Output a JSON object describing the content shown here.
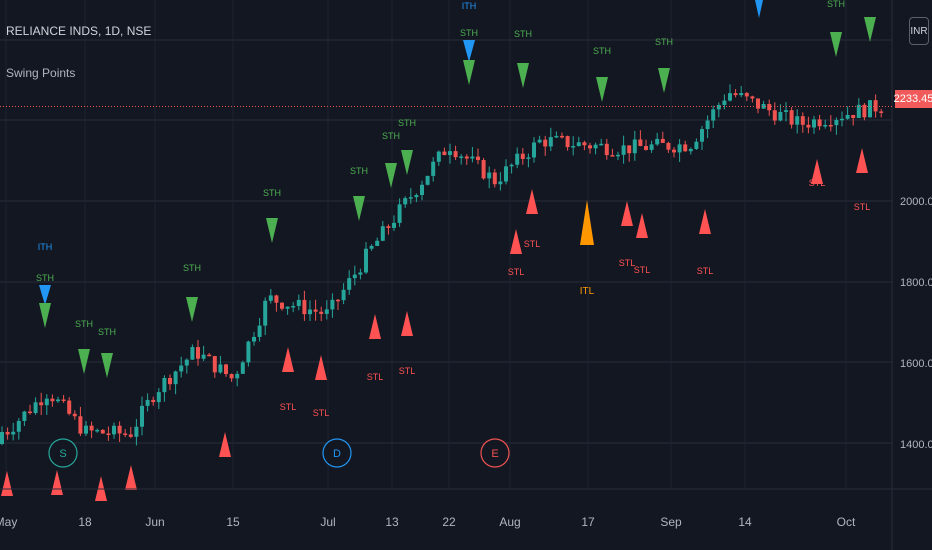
{
  "header": {
    "title": "RELIANCE INDS, 1D, NSE",
    "indicator": "Swing Points",
    "currency": "INR"
  },
  "last_price": "2233.45",
  "colors": {
    "background": "#131722",
    "up": "#26a69a",
    "down": "#ef5350",
    "swing_high": "#4caf50",
    "intermediate_high": "#2196f3",
    "swing_low": "#ff5252",
    "intermediate_low": "#ff9800"
  },
  "chart_data": {
    "type": "candlestick",
    "ylim": [
      1275,
      2345
    ],
    "y_ticks": [
      "2000.00",
      "1800.00",
      "1600.00",
      "1400.00"
    ],
    "x_ticks": [
      "May",
      "18",
      "Jun",
      "15",
      "Jul",
      "13",
      "22",
      "Aug",
      "17",
      "Sep",
      "14",
      "Oct"
    ],
    "marker_labels": {
      "swing_high": "STH",
      "intermediate_high": "ITH",
      "swing_low": "STL",
      "intermediate_low": "ITL"
    },
    "event_markers": [
      "S",
      "D",
      "E"
    ],
    "approx_close_path": [
      [
        "May 4",
        1430
      ],
      [
        "May 11",
        1530
      ],
      [
        "May 18",
        1430
      ],
      [
        "May 25",
        1425
      ],
      [
        "Jun 1",
        1530
      ],
      [
        "Jun 8",
        1630
      ],
      [
        "Jun 15",
        1560
      ],
      [
        "Jun 19",
        1760
      ],
      [
        "Jul 1",
        1720
      ],
      [
        "Jul 10",
        1870
      ],
      [
        "Jul 16",
        1950
      ],
      [
        "Jul 22",
        2140
      ],
      [
        "Jul 31",
        2050
      ],
      [
        "Aug 14",
        2150
      ],
      [
        "Aug 28",
        2130
      ],
      [
        "Sep 10",
        2140
      ],
      [
        "Sep 14",
        2270
      ],
      [
        "Sep 28",
        2190
      ],
      [
        "Oct 8",
        2233.45
      ]
    ]
  }
}
